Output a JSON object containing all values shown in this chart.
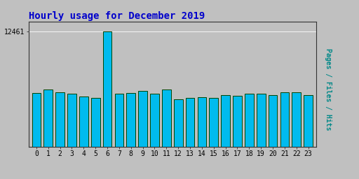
{
  "title": "Hourly usage for December 2019",
  "hours": [
    0,
    1,
    2,
    3,
    4,
    5,
    6,
    7,
    8,
    9,
    10,
    11,
    12,
    13,
    14,
    15,
    16,
    17,
    18,
    19,
    20,
    21,
    22,
    23
  ],
  "values": [
    5800,
    6200,
    5900,
    5700,
    5400,
    5300,
    12461,
    5700,
    5800,
    6000,
    5750,
    6200,
    5100,
    5300,
    5350,
    5250,
    5550,
    5500,
    5700,
    5700,
    5600,
    5900,
    5900,
    5600
  ],
  "bar_color": "#00BBEE",
  "bar_edge_color": "#004400",
  "bar_edge_width": 0.7,
  "title_color": "#0000CC",
  "title_fontsize": 10,
  "ylabel_text": "Pages / Files / Hits",
  "ylabel_color": "#008888",
  "background_color": "#C0C0C0",
  "plot_bg_color": "#C0C0C0",
  "ylim_max": 13500,
  "tick_color": "#000000",
  "tick_fontsize": 7,
  "font_family": "monospace"
}
